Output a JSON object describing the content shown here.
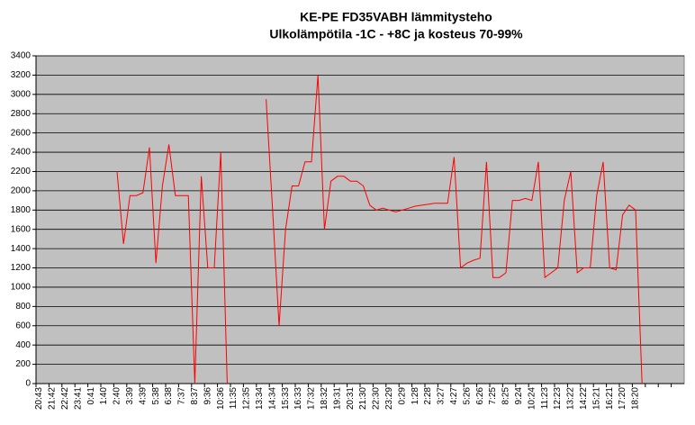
{
  "chart_data": {
    "type": "line",
    "title": "KE-PE FD35VABH lämmitysteho",
    "subtitle": "Ulkolämpötila  -1C - +8C ja kosteus 70-99%",
    "categories": [
      "20:43",
      null,
      "21:42",
      null,
      "22:42",
      null,
      "23:41",
      null,
      "0:41",
      null,
      "1:40",
      null,
      "2:40",
      null,
      "3:39",
      null,
      "4:39",
      null,
      "5:38",
      null,
      "6:38",
      null,
      "7:37",
      null,
      "8:37",
      null,
      "9:36",
      null,
      "10:36",
      null,
      "11:35",
      null,
      "12:35",
      null,
      "13:34",
      null,
      "14:34",
      null,
      "15:33",
      null,
      "16:33",
      null,
      "17:32",
      null,
      "18:32",
      null,
      "19:31",
      null,
      "20:31",
      null,
      "21:30",
      null,
      "22:30",
      null,
      "23:29",
      null,
      "0:29",
      null,
      "1:28",
      null,
      "2:28",
      null,
      "3:27",
      null,
      "4:27",
      null,
      "5:26",
      null,
      "6:26",
      null,
      "7:25",
      null,
      "8:25",
      null,
      "9:24",
      null,
      "10:24",
      null,
      "11:23",
      null,
      "12:23",
      null,
      "13:22",
      null,
      "14:22",
      null,
      "15:21",
      null,
      "16:21",
      null,
      "17:20",
      null,
      "18:20",
      null,
      null,
      null,
      null,
      null,
      null,
      null
    ],
    "series": [
      {
        "color": "#ff0000",
        "values": [
          null,
          null,
          null,
          null,
          null,
          null,
          null,
          null,
          null,
          null,
          null,
          null,
          2200,
          1450,
          1950,
          1950,
          1980,
          2450,
          1250,
          2050,
          2480,
          1950,
          1950,
          1950,
          0,
          2150,
          1200,
          1200,
          2400,
          0,
          null,
          null,
          null,
          null,
          null,
          2950,
          1800,
          600,
          1600,
          2050,
          2050,
          2300,
          2300,
          3200,
          1600,
          2100,
          2150,
          2150,
          2100,
          2100,
          2050,
          1850,
          1800,
          1820,
          1800,
          1780,
          1800,
          1820,
          1840,
          1850,
          1860,
          1870,
          1870,
          1870,
          2350,
          1200,
          1250,
          1280,
          1300,
          2300,
          1100,
          1100,
          1150,
          1900,
          1900,
          1920,
          1900,
          2300,
          1100,
          1150,
          1200,
          1900,
          2200,
          1150,
          1200,
          1200,
          1950,
          2300,
          1200,
          1180,
          1750,
          1850,
          1800,
          0,
          null,
          null,
          null,
          null,
          null,
          null
        ]
      }
    ],
    "ylim": [
      0,
      3400
    ],
    "yticks": [
      0,
      200,
      400,
      600,
      800,
      1000,
      1200,
      1400,
      1600,
      1800,
      2000,
      2200,
      2400,
      2600,
      2800,
      3000,
      3200,
      3400
    ],
    "grid": true,
    "plot_background": "#c0c0c0"
  }
}
